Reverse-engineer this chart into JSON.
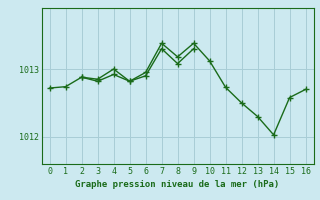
{
  "series1": {
    "x": [
      0,
      1,
      2,
      3,
      4,
      5,
      6,
      7,
      8,
      9,
      10,
      11,
      12,
      13,
      14,
      15,
      16
    ],
    "y": [
      1012.72,
      1012.74,
      1012.88,
      1012.85,
      1013.0,
      1012.82,
      1012.95,
      1013.38,
      1013.18,
      1013.38,
      1013.12,
      1012.73,
      1012.5,
      1012.3,
      1012.03,
      1012.58,
      1012.7
    ]
  },
  "series2": {
    "x": [
      2,
      3,
      4,
      5,
      6,
      7,
      8,
      9
    ],
    "y": [
      1012.88,
      1012.82,
      1012.92,
      1012.82,
      1012.9,
      1013.3,
      1013.08,
      1013.3
    ]
  },
  "line_color": "#1a6b1a",
  "bg_color": "#cce9f0",
  "grid_color": "#a8cdd6",
  "xlabel": "Graphe pression niveau de la mer (hPa)",
  "ylim": [
    1011.6,
    1013.9
  ],
  "xlim": [
    -0.5,
    16.5
  ],
  "yticks": [
    1012,
    1013
  ],
  "xticks": [
    0,
    1,
    2,
    3,
    4,
    5,
    6,
    7,
    8,
    9,
    10,
    11,
    12,
    13,
    14,
    15,
    16
  ]
}
